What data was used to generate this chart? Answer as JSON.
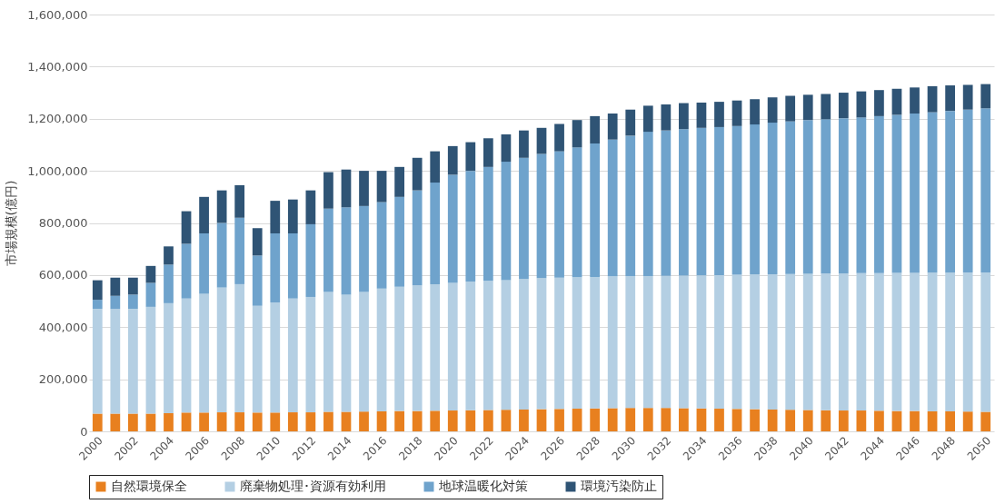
{
  "chart_data": {
    "type": "bar",
    "stacked": true,
    "ylabel": "市場規模(億円)",
    "categories": [
      "2000",
      null,
      "2002",
      null,
      "2004",
      null,
      "2006",
      null,
      "2008",
      null,
      "2010",
      null,
      "2012",
      null,
      "2014",
      null,
      "2016",
      null,
      "2018",
      null,
      "2020",
      null,
      "2022",
      null,
      "2024",
      null,
      "2026",
      null,
      "2028",
      null,
      "2030",
      null,
      "2032",
      null,
      "2034",
      null,
      "2036",
      null,
      "2038",
      null,
      "2040",
      null,
      "2042",
      null,
      "2044",
      null,
      "2046",
      null,
      "2048",
      null,
      "2050"
    ],
    "ylim": [
      0,
      1600000
    ],
    "yticks": [
      0,
      {
        "value": 200000,
        "label": "200,000"
      },
      {
        "value": 400000,
        "label": "400,000"
      },
      {
        "value": 600000,
        "label": "600,000"
      },
      {
        "value": 800000,
        "label": "800,000"
      },
      {
        "value": 1000000,
        "label": "1,000,000"
      },
      {
        "value": 1200000,
        "label": "1,200,000"
      },
      {
        "value": 1400000,
        "label": "1,400,000"
      },
      {
        "value": 1600000,
        "label": "1,600,000"
      }
    ],
    "grid": "y",
    "legend": "bottom",
    "series": [
      {
        "name": "自然環境保全",
        "color": "#e8801f",
        "values": [
          68000,
          68000,
          68000,
          68000,
          70000,
          72000,
          72000,
          73000,
          73000,
          72000,
          72000,
          73000,
          73000,
          75000,
          75000,
          76000,
          77000,
          78000,
          78000,
          79000,
          80000,
          81000,
          82000,
          83000,
          84000,
          85000,
          86000,
          87000,
          88000,
          89000,
          90000,
          90000,
          90000,
          89000,
          88000,
          87000,
          86000,
          85000,
          84000,
          83000,
          82000,
          81000,
          80000,
          80000,
          79000,
          78000,
          78000,
          77000,
          77000,
          76000,
          75000
        ]
      },
      {
        "name": "廃棄物処理･資源有効利用",
        "color": "#b4cfe3",
        "values": [
          402000,
          402000,
          402000,
          410000,
          422000,
          438000,
          456000,
          479000,
          492000,
          410000,
          423000,
          437000,
          443000,
          460000,
          450000,
          459000,
          471000,
          477000,
          482000,
          486000,
          490000,
          494000,
          496000,
          497000,
          501000,
          503000,
          504000,
          505000,
          505000,
          506000,
          506000,
          506000,
          507000,
          509000,
          511000,
          513000,
          515000,
          517000,
          519000,
          521000,
          523000,
          525000,
          526000,
          527000,
          528000,
          530000,
          530000,
          532000,
          532000,
          534000,
          535000
        ]
      },
      {
        "name": "地球温暖化対策",
        "color": "#6fa3cc",
        "values": [
          35000,
          50000,
          55000,
          92000,
          148000,
          210000,
          232000,
          248000,
          255000,
          193000,
          265000,
          250000,
          279000,
          320000,
          335000,
          330000,
          332000,
          345000,
          365000,
          390000,
          415000,
          425000,
          437000,
          455000,
          465000,
          477000,
          485000,
          498000,
          512000,
          525000,
          539000,
          554000,
          558000,
          562000,
          566000,
          568000,
          571000,
          576000,
          582000,
          586000,
          590000,
          592000,
          596000,
          598000,
          603000,
          607000,
          612000,
          616000,
          621000,
          625000,
          630000
        ]
      },
      {
        "name": "環境汚染防止",
        "color": "#2f5475",
        "values": [
          75000,
          70000,
          65000,
          65000,
          70000,
          125000,
          140000,
          125000,
          125000,
          105000,
          125000,
          130000,
          130000,
          140000,
          145000,
          135000,
          120000,
          115000,
          125000,
          120000,
          110000,
          110000,
          110000,
          105000,
          105000,
          100000,
          105000,
          105000,
          105000,
          100000,
          100000,
          100000,
          100000,
          100000,
          97000,
          97000,
          98000,
          97000,
          97000,
          98000,
          97000,
          97000,
          98000,
          100000,
          100000,
          100000,
          100000,
          100000,
          98000,
          95000,
          93000
        ]
      }
    ]
  }
}
